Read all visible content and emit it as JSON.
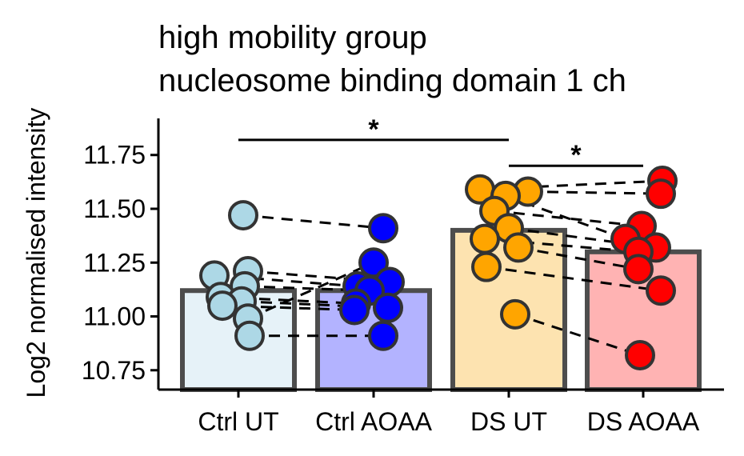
{
  "chart_data": {
    "type": "bar",
    "title_lines": [
      "high mobility group",
      "nucleosome binding domain 1 ch"
    ],
    "ylabel": "Log2 normalised intensity",
    "xlabel": "",
    "ylim": [
      10.66,
      11.92
    ],
    "yticks": [
      "10.75",
      "11.00",
      "11.25",
      "11.50",
      "11.75"
    ],
    "categories": [
      "Ctrl UT",
      "Ctrl AOAA",
      "DS UT",
      "DS AOAA"
    ],
    "bar_values": [
      11.12,
      11.12,
      11.4,
      11.3
    ],
    "bar_fill_colors": [
      "#e6f2f8",
      "#b3b3ff",
      "#fde3b0",
      "#ffb3b3"
    ],
    "bar_edge_color": "#4d4d4d",
    "point_fill_colors": [
      "#add8e6",
      "#0000ff",
      "#ffa500",
      "#ff0000"
    ],
    "point_edge_color": "#333333",
    "points": [
      [
        11.47,
        11.21,
        11.19,
        11.14,
        11.09,
        11.07,
        11.05,
        10.99,
        10.91
      ],
      [
        11.41,
        11.25,
        11.16,
        11.14,
        11.12,
        11.06,
        11.04,
        11.03,
        10.91
      ],
      [
        11.59,
        11.58,
        11.56,
        11.49,
        11.41,
        11.36,
        11.32,
        11.23,
        11.01
      ],
      [
        11.63,
        11.57,
        11.42,
        11.36,
        11.32,
        11.3,
        11.22,
        11.12,
        10.82
      ]
    ],
    "pairs": [
      {
        "from": 0,
        "to": 1,
        "values": [
          [
            11.47,
            11.41
          ],
          [
            11.21,
            11.16
          ],
          [
            11.19,
            11.14
          ],
          [
            11.14,
            11.12
          ],
          [
            11.09,
            11.06
          ],
          [
            11.07,
            11.04
          ],
          [
            11.05,
            11.03
          ],
          [
            10.99,
            11.25
          ],
          [
            10.91,
            10.91
          ]
        ]
      },
      {
        "from": 2,
        "to": 3,
        "values": [
          [
            11.59,
            11.63
          ],
          [
            11.58,
            11.57
          ],
          [
            11.56,
            11.36
          ],
          [
            11.49,
            11.42
          ],
          [
            11.41,
            11.32
          ],
          [
            11.36,
            11.3
          ],
          [
            11.32,
            11.22
          ],
          [
            11.23,
            11.12
          ],
          [
            11.01,
            10.82
          ]
        ]
      }
    ],
    "significance": [
      {
        "from": 0,
        "to": 2,
        "y": 11.82,
        "label": "*"
      },
      {
        "from": 2,
        "to": 3,
        "y": 11.7,
        "label": "*"
      }
    ],
    "grid": false,
    "legend": "none"
  }
}
